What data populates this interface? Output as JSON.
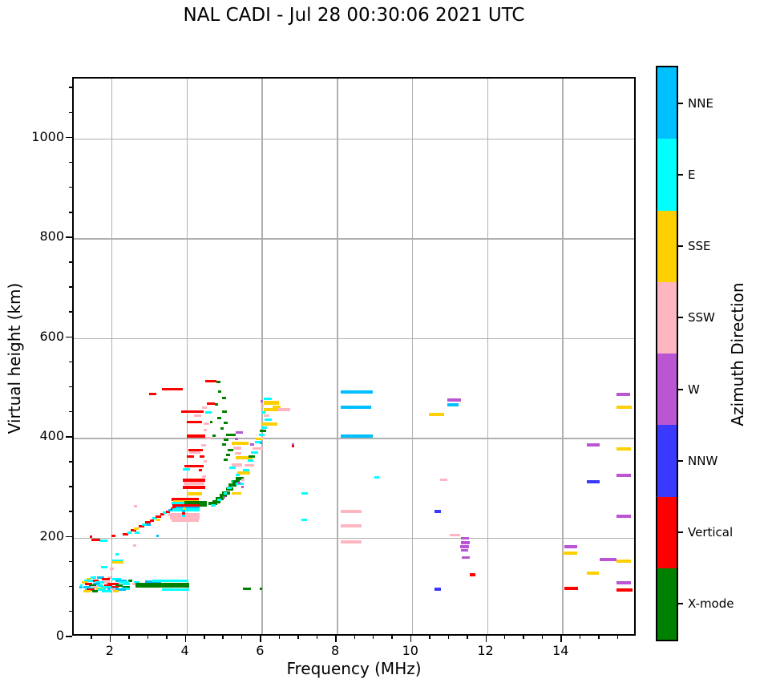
{
  "title": "NAL CADI - Jul 28 00:30:06 2021 UTC",
  "chart_data": {
    "type": "scatter",
    "title": "NAL CADI - Jul 28 00:30:06 2021 UTC",
    "xlabel": "Frequency (MHz)",
    "ylabel": "Virtual height (km)",
    "xlim": [
      1,
      16
    ],
    "ylim": [
      0,
      1120
    ],
    "x_major_ticks": [
      2,
      4,
      6,
      8,
      10,
      12,
      14,
      16
    ],
    "x_minor_step": 0.5,
    "y_major_ticks": [
      0,
      200,
      400,
      600,
      800,
      1000
    ],
    "y_minor_step": 50,
    "grid": true,
    "grid_color": "#b0b0b0",
    "colorbar": {
      "label": "Azimuth Direction",
      "categories": [
        {
          "label": "NNE",
          "color": "#00BFFF"
        },
        {
          "label": "E",
          "color": "#00FFFF"
        },
        {
          "label": "SSE",
          "color": "#FFD000"
        },
        {
          "label": "SSW",
          "color": "#FFB6C1"
        },
        {
          "label": "W",
          "color": "#BA55D3"
        },
        {
          "label": "NNW",
          "color": "#3A3AFF"
        },
        {
          "label": "Vertical",
          "color": "#FF0000"
        },
        {
          "label": "X-mode",
          "color": "#008000"
        }
      ]
    },
    "point_colors": {
      "B": "#00BFFF",
      "C": "#00FFFF",
      "Y": "#FFD000",
      "P": "#FFB6C1",
      "W": "#BA55D3",
      "N": "#3A3AFF",
      "R": "#FF0000",
      "G": "#008000"
    },
    "points_format": [
      "freq_MHz",
      "height_km",
      "width_MHz",
      "direction_code",
      "thickness_px"
    ],
    "points": [
      [
        1.45,
        120,
        0.15,
        "C"
      ],
      [
        1.62,
        120,
        0.2,
        "B"
      ],
      [
        1.9,
        119,
        0.1,
        "P"
      ],
      [
        1.35,
        116,
        0.1,
        "Y"
      ],
      [
        1.75,
        116,
        0.2,
        "R"
      ],
      [
        2.0,
        116,
        0.25,
        "C"
      ],
      [
        1.28,
        113,
        0.28,
        "C"
      ],
      [
        1.52,
        113,
        0.15,
        "R"
      ],
      [
        2.1,
        113,
        0.3,
        "B"
      ],
      [
        2.45,
        113,
        0.1,
        "G"
      ],
      [
        2.9,
        111,
        0.42,
        "B"
      ],
      [
        1.22,
        110,
        0.15,
        "Y"
      ],
      [
        1.55,
        110,
        0.33,
        "C"
      ],
      [
        1.82,
        110,
        0.15,
        "P"
      ],
      [
        2.2,
        110,
        0.28,
        "C"
      ],
      [
        2.6,
        110,
        0.15,
        "C"
      ],
      [
        1.3,
        107,
        0.2,
        "R"
      ],
      [
        1.52,
        107,
        0.18,
        "B"
      ],
      [
        1.9,
        107,
        0.3,
        "R"
      ],
      [
        2.3,
        107,
        0.2,
        "C"
      ],
      [
        2.55,
        107,
        0.1,
        "P"
      ],
      [
        1.4,
        104,
        0.2,
        "G"
      ],
      [
        1.62,
        104,
        0.18,
        "C"
      ],
      [
        1.82,
        104,
        0.2,
        "R"
      ],
      [
        2.1,
        104,
        0.2,
        "G"
      ],
      [
        2.65,
        104,
        1.42,
        "G",
        6
      ],
      [
        3.1,
        114,
        0.95,
        "C"
      ],
      [
        3.35,
        96,
        0.72,
        "C"
      ],
      [
        1.25,
        101,
        0.2,
        "B"
      ],
      [
        1.45,
        101,
        0.2,
        "P"
      ],
      [
        1.7,
        101,
        0.3,
        "C"
      ],
      [
        2.0,
        101,
        0.2,
        "R"
      ],
      [
        2.3,
        101,
        0.2,
        "G"
      ],
      [
        1.3,
        98,
        0.25,
        "C"
      ],
      [
        1.6,
        98,
        0.2,
        "Y"
      ],
      [
        1.9,
        98,
        0.3,
        "B"
      ],
      [
        2.25,
        98,
        0.25,
        "C"
      ],
      [
        1.35,
        95,
        0.2,
        "R"
      ],
      [
        1.65,
        95,
        0.2,
        "C"
      ],
      [
        1.95,
        95,
        0.15,
        "P"
      ],
      [
        2.18,
        95,
        0.2,
        "B"
      ],
      [
        1.25,
        92,
        0.2,
        "Y"
      ],
      [
        1.5,
        92,
        0.15,
        "G"
      ],
      [
        1.75,
        92,
        0.25,
        "C"
      ],
      [
        2.05,
        92,
        0.15,
        "Y"
      ],
      [
        1.15,
        100,
        0.08,
        "B"
      ],
      [
        1.18,
        104,
        0.06,
        "C"
      ],
      [
        5.5,
        98,
        0.22,
        "G"
      ],
      [
        5.95,
        98,
        0.06,
        "G"
      ],
      [
        1.72,
        141,
        0.17,
        "C"
      ],
      [
        1.95,
        138,
        0.12,
        "P"
      ],
      [
        2.02,
        154,
        0.3,
        "C"
      ],
      [
        2.02,
        150,
        0.3,
        "Y"
      ],
      [
        2.1,
        166,
        0.1,
        "C"
      ],
      [
        1.42,
        201,
        0.06,
        "R"
      ],
      [
        1.48,
        195,
        0.22,
        "R"
      ],
      [
        1.7,
        193,
        0.2,
        "C"
      ],
      [
        2.0,
        203,
        0.12,
        "R"
      ],
      [
        2.58,
        184,
        0.08,
        "P"
      ],
      [
        3.2,
        204,
        0.07,
        "B"
      ],
      [
        2.6,
        262,
        0.08,
        "P"
      ],
      [
        2.3,
        206,
        0.15,
        "R"
      ],
      [
        2.42,
        210,
        0.12,
        "C"
      ],
      [
        2.52,
        214,
        0.15,
        "R"
      ],
      [
        2.62,
        210,
        0.12,
        "C"
      ],
      [
        2.6,
        218,
        0.12,
        "Y"
      ],
      [
        2.72,
        222,
        0.15,
        "R"
      ],
      [
        2.82,
        226,
        0.12,
        "C"
      ],
      [
        2.9,
        230,
        0.15,
        "R"
      ],
      [
        2.95,
        226,
        0.1,
        "B"
      ],
      [
        3.02,
        234,
        0.12,
        "R"
      ],
      [
        3.1,
        238,
        0.12,
        "C"
      ],
      [
        3.18,
        242,
        0.15,
        "R"
      ],
      [
        3.2,
        236,
        0.1,
        "Y"
      ],
      [
        3.3,
        246,
        0.12,
        "R"
      ],
      [
        3.36,
        250,
        0.12,
        "C"
      ],
      [
        3.45,
        252,
        0.12,
        "R"
      ],
      [
        3.52,
        255,
        0.1,
        "B"
      ],
      [
        3.58,
        258,
        0.12,
        "R"
      ],
      [
        3.6,
        277,
        0.72,
        "R",
        4
      ],
      [
        3.65,
        272,
        0.68,
        "Y",
        4
      ],
      [
        3.6,
        268,
        0.73,
        "C",
        4
      ],
      [
        3.95,
        267,
        0.6,
        "G",
        7
      ],
      [
        3.62,
        263,
        0.7,
        "R",
        4
      ],
      [
        3.7,
        259,
        0.65,
        "B",
        4
      ],
      [
        3.62,
        255,
        0.72,
        "C",
        4
      ],
      [
        3.52,
        246,
        0.82,
        "P",
        4
      ],
      [
        3.56,
        240,
        0.78,
        "P",
        4
      ],
      [
        3.6,
        234,
        0.72,
        "P",
        4
      ],
      [
        4.0,
        288,
        0.42,
        "Y",
        4
      ],
      [
        3.88,
        244,
        0.08,
        "C"
      ],
      [
        3.88,
        249,
        0.08,
        "R"
      ],
      [
        3.88,
        253,
        0.08,
        "B"
      ],
      [
        3.9,
        258,
        0.08,
        "Y"
      ],
      [
        3.9,
        315,
        0.6,
        "R",
        4
      ],
      [
        3.92,
        308,
        0.55,
        "P",
        4
      ],
      [
        3.9,
        300,
        0.6,
        "R",
        4
      ],
      [
        3.35,
        497,
        0.55,
        "R"
      ],
      [
        3.0,
        488,
        0.2,
        "R"
      ],
      [
        4.5,
        514,
        0.3,
        "R"
      ],
      [
        4.55,
        468,
        0.2,
        "R"
      ],
      [
        3.85,
        452,
        0.6,
        "R"
      ],
      [
        4.5,
        451,
        0.18,
        "C"
      ],
      [
        4.2,
        444,
        0.2,
        "P"
      ],
      [
        4.0,
        432,
        0.42,
        "R"
      ],
      [
        4.45,
        428,
        0.15,
        "P"
      ],
      [
        4.0,
        403,
        0.5,
        "R",
        4
      ],
      [
        4.52,
        400,
        0.12,
        "P"
      ],
      [
        4.05,
        375,
        0.38,
        "R"
      ],
      [
        4.08,
        370,
        0.3,
        "P"
      ],
      [
        4.0,
        362,
        0.2,
        "R"
      ],
      [
        4.35,
        362,
        0.12,
        "R"
      ],
      [
        3.95,
        343,
        0.5,
        "R"
      ],
      [
        3.9,
        336,
        0.2,
        "C"
      ],
      [
        4.32,
        335,
        0.1,
        "R"
      ],
      [
        4.42,
        460,
        0.12,
        "P"
      ],
      [
        4.45,
        415,
        0.1,
        "P"
      ],
      [
        4.4,
        385,
        0.12,
        "P"
      ],
      [
        4.45,
        352,
        0.1,
        "P"
      ],
      [
        4.42,
        322,
        0.1,
        "P"
      ],
      [
        4.8,
        512,
        0.1,
        "G"
      ],
      [
        4.85,
        492,
        0.08,
        "G"
      ],
      [
        4.95,
        480,
        0.1,
        "G"
      ],
      [
        4.75,
        466,
        0.1,
        "G"
      ],
      [
        4.95,
        452,
        0.12,
        "G"
      ],
      [
        4.82,
        440,
        0.1,
        "G"
      ],
      [
        5.0,
        430,
        0.1,
        "G"
      ],
      [
        4.9,
        418,
        0.08,
        "G"
      ],
      [
        5.05,
        406,
        0.25,
        "G"
      ],
      [
        5.0,
        396,
        0.12,
        "G"
      ],
      [
        4.95,
        386,
        0.1,
        "G"
      ],
      [
        5.1,
        376,
        0.15,
        "G"
      ],
      [
        5.05,
        366,
        0.12,
        "G"
      ],
      [
        5.0,
        356,
        0.1,
        "G"
      ],
      [
        4.62,
        432,
        0.08,
        "G"
      ],
      [
        4.7,
        404,
        0.08,
        "G"
      ],
      [
        5.3,
        411,
        0.2,
        "W"
      ],
      [
        5.28,
        398,
        0.1,
        "W"
      ],
      [
        5.2,
        389,
        0.45,
        "Y",
        4
      ],
      [
        5.25,
        380,
        0.2,
        "P",
        4
      ],
      [
        5.3,
        360,
        0.45,
        "Y",
        4
      ],
      [
        5.28,
        368,
        0.18,
        "P"
      ],
      [
        5.35,
        330,
        0.35,
        "Y",
        4
      ],
      [
        5.2,
        345,
        0.28,
        "P",
        4
      ],
      [
        5.15,
        340,
        0.15,
        "C"
      ],
      [
        5.3,
        325,
        0.12,
        "C"
      ],
      [
        5.18,
        312,
        0.1,
        "C"
      ],
      [
        5.45,
        302,
        0.08,
        "W"
      ],
      [
        5.25,
        289,
        0.2,
        "Y"
      ],
      [
        4.58,
        268,
        0.25,
        "G",
        4
      ],
      [
        4.7,
        272,
        0.2,
        "G",
        4
      ],
      [
        4.78,
        278,
        0.22,
        "G",
        4
      ],
      [
        4.88,
        284,
        0.2,
        "G",
        4
      ],
      [
        4.95,
        290,
        0.22,
        "G",
        4
      ],
      [
        5.05,
        297,
        0.2,
        "G",
        4
      ],
      [
        5.12,
        305,
        0.22,
        "G",
        4
      ],
      [
        5.22,
        312,
        0.2,
        "G",
        4
      ],
      [
        5.3,
        318,
        0.22,
        "G",
        4
      ],
      [
        4.65,
        265,
        0.12,
        "C"
      ],
      [
        4.82,
        275,
        0.1,
        "C"
      ],
      [
        4.98,
        288,
        0.1,
        "C"
      ],
      [
        5.08,
        300,
        0.12,
        "C"
      ],
      [
        5.32,
        307,
        0.2,
        "C"
      ],
      [
        5.2,
        289,
        0.07,
        "Y"
      ],
      [
        4.97,
        281,
        0.05,
        "W"
      ],
      [
        5.38,
        310,
        0.05,
        "W"
      ],
      [
        5.45,
        315,
        0.1,
        "P"
      ],
      [
        5.5,
        335,
        0.18,
        "C"
      ],
      [
        5.55,
        345,
        0.25,
        "P"
      ],
      [
        5.62,
        355,
        0.15,
        "C"
      ],
      [
        5.65,
        362,
        0.18,
        "G"
      ],
      [
        5.72,
        370,
        0.18,
        "C"
      ],
      [
        5.75,
        378,
        0.28,
        "P"
      ],
      [
        5.7,
        386,
        0.1,
        "W"
      ],
      [
        5.82,
        392,
        0.18,
        "C"
      ],
      [
        5.85,
        398,
        0.18,
        "Y"
      ],
      [
        5.92,
        406,
        0.15,
        "C"
      ],
      [
        5.95,
        413,
        0.18,
        "G"
      ],
      [
        6.0,
        420,
        0.15,
        "C"
      ],
      [
        6.02,
        428,
        0.4,
        "Y",
        4
      ],
      [
        6.08,
        436,
        0.18,
        "C"
      ],
      [
        6.05,
        444,
        0.15,
        "P"
      ],
      [
        6.05,
        456,
        0.4,
        "Y",
        4
      ],
      [
        6.05,
        470,
        0.42,
        "Y",
        5
      ],
      [
        6.05,
        478,
        0.22,
        "C"
      ],
      [
        6.3,
        462,
        0.2,
        "Y"
      ],
      [
        6.42,
        456,
        0.35,
        "P",
        4
      ],
      [
        6.0,
        451,
        0.1,
        "C"
      ],
      [
        5.98,
        464,
        0.08,
        "P"
      ],
      [
        5.97,
        474,
        0.07,
        "W"
      ],
      [
        6.0,
        400,
        0.08,
        "P"
      ],
      [
        5.95,
        390,
        0.06,
        "B"
      ],
      [
        6.8,
        387,
        0.07,
        "W"
      ],
      [
        6.8,
        383,
        0.07,
        "R"
      ],
      [
        7.06,
        289,
        0.18,
        "C"
      ],
      [
        7.05,
        235,
        0.17,
        "C"
      ],
      [
        9.0,
        321,
        0.14,
        "C"
      ],
      [
        8.1,
        492,
        0.85,
        "B",
        4
      ],
      [
        8.1,
        461,
        0.82,
        "B",
        4
      ],
      [
        8.1,
        403,
        0.85,
        "B",
        4
      ],
      [
        8.1,
        252,
        0.55,
        "P",
        4
      ],
      [
        8.1,
        223,
        0.55,
        "P",
        4
      ],
      [
        8.1,
        192,
        0.55,
        "P",
        4
      ],
      [
        10.45,
        447,
        0.4,
        "Y",
        4
      ],
      [
        10.95,
        476,
        0.35,
        "W",
        4
      ],
      [
        10.95,
        466,
        0.3,
        "B",
        4
      ],
      [
        10.75,
        316,
        0.2,
        "P"
      ],
      [
        10.6,
        252,
        0.17,
        "N",
        4
      ],
      [
        11.0,
        205,
        0.28,
        "P"
      ],
      [
        11.3,
        198,
        0.22,
        "W"
      ],
      [
        11.3,
        189,
        0.25,
        "W",
        4
      ],
      [
        11.28,
        181,
        0.25,
        "W",
        4
      ],
      [
        11.3,
        174,
        0.2,
        "W"
      ],
      [
        11.32,
        160,
        0.22,
        "W"
      ],
      [
        11.55,
        126,
        0.15,
        "R",
        4
      ],
      [
        10.6,
        97,
        0.17,
        "N",
        4
      ],
      [
        15.44,
        487,
        0.37,
        "W",
        4
      ],
      [
        15.45,
        461,
        0.4,
        "Y",
        4
      ],
      [
        14.65,
        385,
        0.35,
        "W",
        4
      ],
      [
        15.45,
        377,
        0.38,
        "Y",
        4
      ],
      [
        15.45,
        324,
        0.38,
        "W",
        4
      ],
      [
        14.65,
        311,
        0.35,
        "N",
        4
      ],
      [
        15.45,
        242,
        0.38,
        "W",
        4
      ],
      [
        14.05,
        181,
        0.35,
        "W",
        4
      ],
      [
        14.02,
        169,
        0.38,
        "Y",
        4
      ],
      [
        15.0,
        156,
        0.45,
        "W",
        4
      ],
      [
        15.45,
        153,
        0.38,
        "Y",
        4
      ],
      [
        14.65,
        129,
        0.33,
        "Y",
        4
      ],
      [
        15.45,
        110,
        0.38,
        "W",
        4
      ],
      [
        14.05,
        98,
        0.38,
        "R",
        4
      ],
      [
        15.45,
        95,
        0.42,
        "R",
        4
      ]
    ]
  }
}
